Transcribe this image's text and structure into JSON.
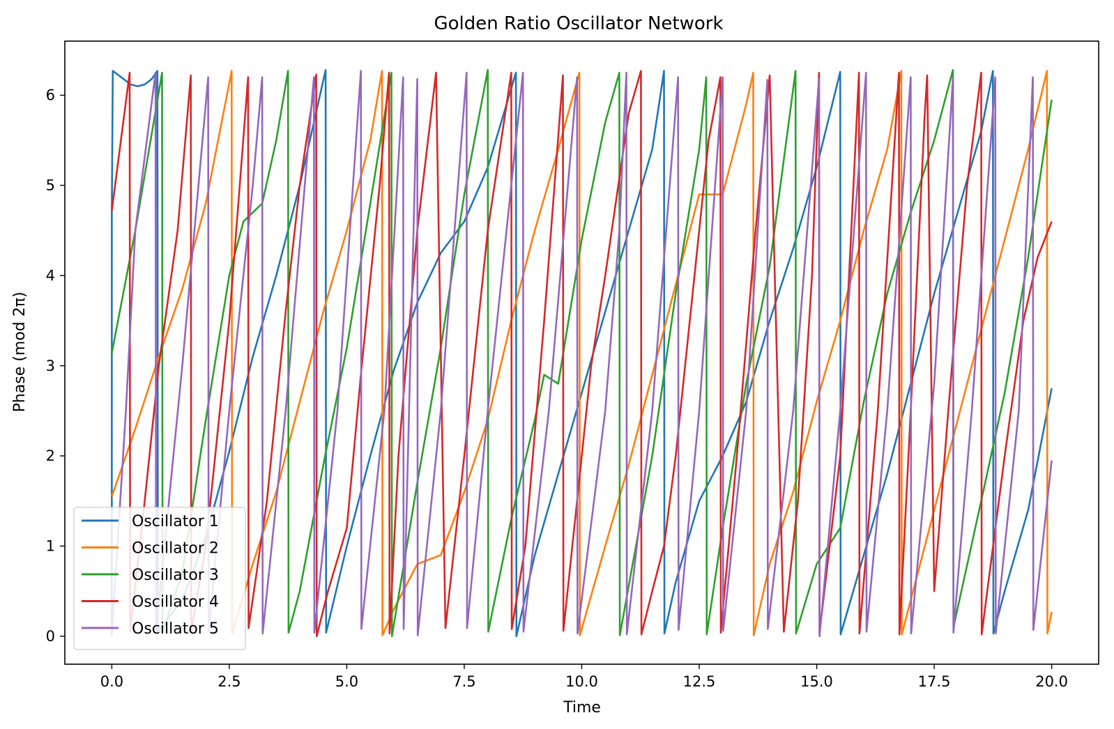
{
  "chart_data": {
    "type": "line",
    "title": "Golden Ratio Oscillator Network",
    "xlabel": "Time",
    "ylabel": "Phase (mod 2π)",
    "xlim": [
      -1.0,
      21.0
    ],
    "ylim": [
      -0.31,
      6.6
    ],
    "xticks": [
      0,
      2.5,
      5,
      7.5,
      10,
      12.5,
      15,
      17.5,
      20
    ],
    "xtick_labels": [
      "0.0",
      "2.5",
      "5.0",
      "7.5",
      "10.0",
      "12.5",
      "15.0",
      "17.5",
      "20.0"
    ],
    "yticks": [
      0,
      1,
      2,
      3,
      4,
      5,
      6
    ],
    "ytick_labels": [
      "0",
      "1",
      "2",
      "3",
      "4",
      "5",
      "6"
    ],
    "grid": false,
    "legend_position": "lower-left",
    "series": [
      {
        "name": "Oscillator 1",
        "color": "#1f77b4",
        "points": [
          [
            0,
            0
          ],
          [
            0,
            4.7
          ],
          [
            0.02,
            6.27
          ],
          [
            0.2,
            6.2
          ],
          [
            0.4,
            6.12
          ],
          [
            0.55,
            6.1
          ],
          [
            0.7,
            6.12
          ],
          [
            0.85,
            6.18
          ],
          [
            0.97,
            6.27
          ],
          [
            0.98,
            0.05
          ],
          [
            1.5,
            0.4
          ],
          [
            2.0,
            1.1
          ],
          [
            2.5,
            2.05
          ],
          [
            3.0,
            3.1
          ],
          [
            3.5,
            4.0
          ],
          [
            4.0,
            5.0
          ],
          [
            4.55,
            6.28
          ],
          [
            4.56,
            0.04
          ],
          [
            5.0,
            1.0
          ],
          [
            5.5,
            2.0
          ],
          [
            6.0,
            2.95
          ],
          [
            6.5,
            3.7
          ],
          [
            7.0,
            4.25
          ],
          [
            7.5,
            4.6
          ],
          [
            8.0,
            5.2
          ],
          [
            8.6,
            6.25
          ],
          [
            8.61,
            0.0
          ],
          [
            9.0,
            0.9
          ],
          [
            9.5,
            1.8
          ],
          [
            10.0,
            2.7
          ],
          [
            10.5,
            3.6
          ],
          [
            11.0,
            4.5
          ],
          [
            11.5,
            5.4
          ],
          [
            11.75,
            6.27
          ],
          [
            11.76,
            0.03
          ],
          [
            12.0,
            0.6
          ],
          [
            12.5,
            1.5
          ],
          [
            13.0,
            2.0
          ],
          [
            13.5,
            2.6
          ],
          [
            14.0,
            3.5
          ],
          [
            14.5,
            4.3
          ],
          [
            15.0,
            5.2
          ],
          [
            15.5,
            6.26
          ],
          [
            15.51,
            0.02
          ],
          [
            16.0,
            0.9
          ],
          [
            16.5,
            1.8
          ],
          [
            17.0,
            2.8
          ],
          [
            17.5,
            3.8
          ],
          [
            18.0,
            4.7
          ],
          [
            18.5,
            5.6
          ],
          [
            18.75,
            6.27
          ],
          [
            18.76,
            0.03
          ],
          [
            19.0,
            0.5
          ],
          [
            19.5,
            1.4
          ],
          [
            20.0,
            2.75
          ]
        ]
      },
      {
        "name": "Oscillator 2",
        "color": "#ff7f0e",
        "points": [
          [
            0,
            1.55
          ],
          [
            0.5,
            2.3
          ],
          [
            1.0,
            3.1
          ],
          [
            1.5,
            3.85
          ],
          [
            2.0,
            4.8
          ],
          [
            2.55,
            6.27
          ],
          [
            2.56,
            0.03
          ],
          [
            3.0,
            0.8
          ],
          [
            3.5,
            1.6
          ],
          [
            4.0,
            2.6
          ],
          [
            4.5,
            3.6
          ],
          [
            5.0,
            4.5
          ],
          [
            5.5,
            5.5
          ],
          [
            5.75,
            6.27
          ],
          [
            5.76,
            0.01
          ],
          [
            6.0,
            0.3
          ],
          [
            6.5,
            0.8
          ],
          [
            7.0,
            0.9
          ],
          [
            7.5,
            1.6
          ],
          [
            8.0,
            2.4
          ],
          [
            8.5,
            3.5
          ],
          [
            9.0,
            4.5
          ],
          [
            9.5,
            5.4
          ],
          [
            9.95,
            6.25
          ],
          [
            9.96,
            0.01
          ],
          [
            10.5,
            1.0
          ],
          [
            11.0,
            1.9
          ],
          [
            11.5,
            2.9
          ],
          [
            12.0,
            3.9
          ],
          [
            12.5,
            4.9
          ],
          [
            13.0,
            4.9
          ],
          [
            13.5,
            5.9
          ],
          [
            13.65,
            6.25
          ],
          [
            13.66,
            0.01
          ],
          [
            14.0,
            0.8
          ],
          [
            14.5,
            1.6
          ],
          [
            15.0,
            2.6
          ],
          [
            15.5,
            3.5
          ],
          [
            16.0,
            4.5
          ],
          [
            16.5,
            5.4
          ],
          [
            16.8,
            6.27
          ],
          [
            16.81,
            0.02
          ],
          [
            17.0,
            0.4
          ],
          [
            17.5,
            1.4
          ],
          [
            18.0,
            2.4
          ],
          [
            18.5,
            3.4
          ],
          [
            19.0,
            4.4
          ],
          [
            19.5,
            5.4
          ],
          [
            19.9,
            6.27
          ],
          [
            19.91,
            0.03
          ],
          [
            20.0,
            0.27
          ]
        ]
      },
      {
        "name": "Oscillator 3",
        "color": "#2ca02c",
        "points": [
          [
            0,
            3.14
          ],
          [
            0.5,
            4.5
          ],
          [
            1.07,
            6.25
          ],
          [
            1.08,
            0.05
          ],
          [
            1.5,
            0.7
          ],
          [
            2.0,
            2.4
          ],
          [
            2.5,
            4.0
          ],
          [
            2.8,
            4.6
          ],
          [
            3.2,
            4.8
          ],
          [
            3.5,
            5.5
          ],
          [
            3.75,
            6.27
          ],
          [
            3.76,
            0.04
          ],
          [
            4.0,
            0.5
          ],
          [
            4.5,
            1.9
          ],
          [
            5.0,
            3.2
          ],
          [
            5.5,
            4.8
          ],
          [
            5.95,
            6.25
          ],
          [
            5.96,
            0.0
          ],
          [
            6.5,
            1.7
          ],
          [
            7.0,
            3.2
          ],
          [
            7.5,
            4.9
          ],
          [
            8.0,
            6.28
          ],
          [
            8.01,
            0.05
          ],
          [
            8.5,
            1.3
          ],
          [
            9.0,
            2.4
          ],
          [
            9.2,
            2.9
          ],
          [
            9.5,
            2.8
          ],
          [
            10.0,
            4.4
          ],
          [
            10.5,
            5.7
          ],
          [
            10.8,
            6.25
          ],
          [
            10.81,
            0.01
          ],
          [
            11.5,
            2.0
          ],
          [
            12.0,
            3.8
          ],
          [
            12.5,
            5.4
          ],
          [
            12.65,
            6.2
          ],
          [
            12.66,
            0.02
          ],
          [
            13.0,
            1.2
          ],
          [
            13.5,
            2.8
          ],
          [
            14.0,
            4.1
          ],
          [
            14.55,
            6.27
          ],
          [
            14.56,
            0.03
          ],
          [
            15.0,
            0.8
          ],
          [
            15.5,
            1.2
          ],
          [
            16.0,
            2.6
          ],
          [
            16.5,
            3.8
          ],
          [
            17.0,
            4.7
          ],
          [
            17.5,
            5.5
          ],
          [
            17.9,
            6.28
          ],
          [
            17.91,
            0.1
          ],
          [
            18.5,
            1.5
          ],
          [
            19.0,
            2.7
          ],
          [
            19.5,
            4.2
          ],
          [
            20.0,
            5.95
          ]
        ]
      },
      {
        "name": "Oscillator 4",
        "color": "#d62728",
        "points": [
          [
            0,
            4.72
          ],
          [
            0.38,
            6.25
          ],
          [
            0.39,
            0.05
          ],
          [
            0.7,
            1.5
          ],
          [
            1.0,
            3.0
          ],
          [
            1.4,
            4.5
          ],
          [
            1.68,
            6.22
          ],
          [
            1.69,
            0.05
          ],
          [
            2.0,
            1.0
          ],
          [
            2.5,
            3.5
          ],
          [
            2.9,
            6.2
          ],
          [
            2.91,
            0.09
          ],
          [
            3.3,
            1.5
          ],
          [
            3.7,
            3.6
          ],
          [
            4.0,
            5.0
          ],
          [
            4.35,
            6.23
          ],
          [
            4.36,
            0.0
          ],
          [
            4.6,
            0.5
          ],
          [
            5.0,
            1.2
          ],
          [
            5.3,
            2.9
          ],
          [
            5.7,
            5.0
          ],
          [
            5.9,
            6.25
          ],
          [
            5.91,
            0.03
          ],
          [
            6.1,
            2.0
          ],
          [
            6.5,
            4.5
          ],
          [
            6.9,
            6.25
          ],
          [
            7.1,
            0.09
          ],
          [
            7.5,
            2.0
          ],
          [
            8.0,
            4.5
          ],
          [
            8.5,
            6.25
          ],
          [
            8.51,
            0.08
          ],
          [
            8.8,
            1.0
          ],
          [
            9.2,
            3.5
          ],
          [
            9.6,
            6.22
          ],
          [
            9.61,
            0.06
          ],
          [
            9.9,
            1.5
          ],
          [
            10.2,
            3.0
          ],
          [
            10.5,
            4.0
          ],
          [
            11.0,
            5.8
          ],
          [
            11.26,
            6.27
          ],
          [
            11.27,
            0.02
          ],
          [
            11.5,
            0.5
          ],
          [
            11.75,
            1.0
          ],
          [
            12.0,
            2.0
          ],
          [
            12.3,
            3.5
          ],
          [
            12.7,
            5.5
          ],
          [
            12.95,
            6.2
          ],
          [
            12.96,
            0.04
          ],
          [
            13.3,
            2.0
          ],
          [
            13.7,
            4.5
          ],
          [
            14.0,
            6.22
          ],
          [
            14.3,
            0.05
          ],
          [
            14.6,
            1.5
          ],
          [
            14.9,
            4.0
          ],
          [
            15.05,
            6.25
          ],
          [
            15.06,
            0.04
          ],
          [
            15.5,
            2.0
          ],
          [
            15.9,
            6.25
          ],
          [
            15.91,
            0.03
          ],
          [
            16.3,
            2.5
          ],
          [
            16.6,
            5.0
          ],
          [
            16.75,
            6.25
          ],
          [
            16.76,
            0.02
          ],
          [
            17.0,
            2.5
          ],
          [
            17.3,
            5.8
          ],
          [
            17.35,
            6.22
          ],
          [
            17.5,
            0.5
          ],
          [
            17.8,
            2.5
          ],
          [
            18.2,
            5.0
          ],
          [
            18.5,
            6.25
          ],
          [
            18.51,
            0.02
          ],
          [
            19.0,
            2.0
          ],
          [
            19.4,
            3.5
          ],
          [
            19.7,
            4.2
          ],
          [
            20.0,
            4.6
          ]
        ]
      },
      {
        "name": "Oscillator 5",
        "color": "#9467bd",
        "points": [
          [
            0,
            0.02
          ],
          [
            0.3,
            2.5
          ],
          [
            0.5,
            4.5
          ],
          [
            0.93,
            6.25
          ],
          [
            0.94,
            0.05
          ],
          [
            1.5,
            3.0
          ],
          [
            2.05,
            6.2
          ],
          [
            2.06,
            0.05
          ],
          [
            2.5,
            2.5
          ],
          [
            3.0,
            5.0
          ],
          [
            3.2,
            6.2
          ],
          [
            3.21,
            0.03
          ],
          [
            3.7,
            2.5
          ],
          [
            4.3,
            6.2
          ],
          [
            4.31,
            0.04
          ],
          [
            4.8,
            2.5
          ],
          [
            5.3,
            6.27
          ],
          [
            5.31,
            0.08
          ],
          [
            5.8,
            2.5
          ],
          [
            6.2,
            6.2
          ],
          [
            6.21,
            0.08
          ],
          [
            6.5,
            6.18
          ],
          [
            6.51,
            0.01
          ],
          [
            7.0,
            2.5
          ],
          [
            7.55,
            6.25
          ],
          [
            7.56,
            0.09
          ],
          [
            8.0,
            2.5
          ],
          [
            8.75,
            6.25
          ],
          [
            8.76,
            0.05
          ],
          [
            9.3,
            2.5
          ],
          [
            9.9,
            6.2
          ],
          [
            9.91,
            0.03
          ],
          [
            10.5,
            2.5
          ],
          [
            10.8,
            4.5
          ],
          [
            10.95,
            6.25
          ],
          [
            10.96,
            0.02
          ],
          [
            11.5,
            2.5
          ],
          [
            12.05,
            6.2
          ],
          [
            12.06,
            0.07
          ],
          [
            12.5,
            2.5
          ],
          [
            13.0,
            6.2
          ],
          [
            13.01,
            0.06
          ],
          [
            13.5,
            2.5
          ],
          [
            13.95,
            6.17
          ],
          [
            13.96,
            0.08
          ],
          [
            14.5,
            2.5
          ],
          [
            15.05,
            6.18
          ],
          [
            15.06,
            0.0
          ],
          [
            15.5,
            2.5
          ],
          [
            16.05,
            6.25
          ],
          [
            16.06,
            0.05
          ],
          [
            16.5,
            2.5
          ],
          [
            17.0,
            6.2
          ],
          [
            17.01,
            0.03
          ],
          [
            17.5,
            2.8
          ],
          [
            17.9,
            6.2
          ],
          [
            17.91,
            0.04
          ],
          [
            18.3,
            2.5
          ],
          [
            18.8,
            6.2
          ],
          [
            18.81,
            0.03
          ],
          [
            19.3,
            2.5
          ],
          [
            19.6,
            6.2
          ],
          [
            19.61,
            0.07
          ],
          [
            20.0,
            1.95
          ]
        ]
      }
    ]
  }
}
